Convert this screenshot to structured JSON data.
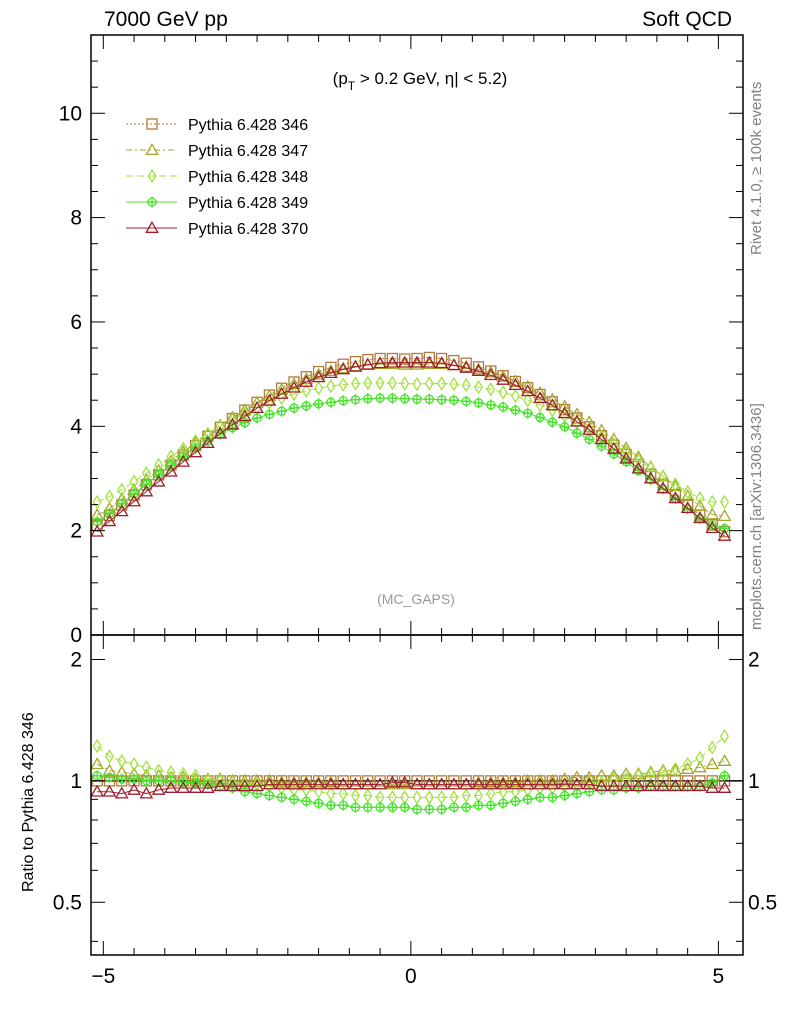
{
  "header": {
    "beam_label": "7000 GeV pp",
    "category": "Soft QCD"
  },
  "side_labels": {
    "rivet": "Rivet 4.1.0, ≥ 100k events",
    "mcplots": "mcplots.cern.ch [arXiv:1306.3436]"
  },
  "chart_data": {
    "type": "scatter",
    "cut_label": {
      "open": "(p",
      "sub": "T",
      "rest": " > 0.2 GeV, η| < 5.2)"
    },
    "watermark": "(MC_GAPS)",
    "x": [
      -5.1,
      -4.9,
      -4.7,
      -4.5,
      -4.3,
      -4.1,
      -3.9,
      -3.7,
      -3.5,
      -3.3,
      -3.1,
      -2.9,
      -2.7,
      -2.5,
      -2.3,
      -2.1,
      -1.9,
      -1.7,
      -1.5,
      -1.3,
      -1.1,
      -0.9,
      -0.7,
      -0.5,
      -0.3,
      -0.1,
      0.1,
      0.3,
      0.5,
      0.7,
      0.9,
      1.1,
      1.3,
      1.5,
      1.7,
      1.9,
      2.1,
      2.3,
      2.5,
      2.7,
      2.9,
      3.1,
      3.3,
      3.5,
      3.7,
      3.9,
      4.1,
      4.3,
      4.5,
      4.7,
      4.9,
      5.1
    ],
    "xlim": [
      -5.2,
      5.4
    ],
    "xticks": [
      -5,
      0,
      5
    ],
    "xtick_labels": [
      "−5",
      "0",
      "5"
    ],
    "main": {
      "ylim": [
        0,
        11.5
      ],
      "yticks": [
        0,
        2,
        4,
        6,
        8,
        10
      ],
      "ytick_labels": [
        "0",
        "2",
        "4",
        "6",
        "8",
        "10"
      ]
    },
    "ratio": {
      "ylabel": "Ratio to Pythia 6.428 346",
      "ylim": [
        0.37,
        2.3
      ],
      "yticks": [
        0.5,
        1,
        2
      ],
      "ytick_labels": [
        "0.5",
        "1",
        "2"
      ]
    },
    "legend_position": "top-left",
    "series": [
      {
        "name": "Pythia 6.428 346",
        "color": "#b07a3c",
        "marker": "square",
        "line": "dotted",
        "values": [
          2.1,
          2.29,
          2.49,
          2.68,
          2.88,
          3.07,
          3.26,
          3.45,
          3.63,
          3.81,
          3.98,
          4.15,
          4.31,
          4.46,
          4.6,
          4.73,
          4.85,
          4.95,
          5.05,
          5.13,
          5.19,
          5.24,
          5.28,
          5.3,
          5.3,
          5.29,
          5.3,
          5.32,
          5.3,
          5.26,
          5.21,
          5.14,
          5.06,
          4.97,
          4.86,
          4.74,
          4.61,
          4.47,
          4.32,
          4.16,
          3.99,
          3.82,
          3.64,
          3.46,
          3.27,
          3.08,
          2.89,
          2.69,
          2.5,
          2.3,
          2.11,
          1.98
        ],
        "ratio": [
          1,
          1,
          1,
          1,
          1,
          1,
          1,
          1,
          1,
          1,
          1,
          1,
          1,
          1,
          1,
          1,
          1,
          1,
          1,
          1,
          1,
          1,
          1,
          1,
          1,
          1,
          1,
          1,
          1,
          1,
          1,
          1,
          1,
          1,
          1,
          1,
          1,
          1,
          1,
          1,
          1,
          1,
          1,
          1,
          1,
          1,
          1,
          1,
          1,
          1,
          1,
          1
        ]
      },
      {
        "name": "Pythia 6.428 347",
        "color": "#a6a62a",
        "marker": "triangle",
        "line": "dashdot",
        "values": [
          2.3,
          2.42,
          2.6,
          2.78,
          2.97,
          3.15,
          3.33,
          3.51,
          3.68,
          3.85,
          4.02,
          4.17,
          4.31,
          4.45,
          4.58,
          4.7,
          4.81,
          4.9,
          4.99,
          5.06,
          5.11,
          5.15,
          5.18,
          5.19,
          5.19,
          5.18,
          5.18,
          5.19,
          5.19,
          5.17,
          5.14,
          5.09,
          5.03,
          4.95,
          4.86,
          4.76,
          4.64,
          4.51,
          4.38,
          4.23,
          4.08,
          3.92,
          3.75,
          3.58,
          3.41,
          3.22,
          3.04,
          2.85,
          2.66,
          2.47,
          2.31,
          2.28
        ],
        "ratio": [
          1.1,
          1.06,
          1.05,
          1.04,
          1.03,
          1.03,
          1.02,
          1.02,
          1.01,
          1.01,
          1.01,
          1,
          1,
          1,
          1,
          0.99,
          0.99,
          0.99,
          0.99,
          0.99,
          0.98,
          0.98,
          0.98,
          0.98,
          0.98,
          0.98,
          0.98,
          0.98,
          0.98,
          0.98,
          0.98,
          0.99,
          0.99,
          0.99,
          0.99,
          1,
          1,
          1,
          1.01,
          1.02,
          1.02,
          1.03,
          1.03,
          1.04,
          1.04,
          1.05,
          1.06,
          1.06,
          1.07,
          1.08,
          1.1,
          1.12
        ]
      },
      {
        "name": "Pythia 6.428 348",
        "color": "#a0e43a",
        "marker": "diamond",
        "line": "dashed",
        "values": [
          2.55,
          2.65,
          2.78,
          2.94,
          3.1,
          3.26,
          3.42,
          3.57,
          3.72,
          3.86,
          4,
          4.12,
          4.24,
          4.35,
          4.45,
          4.54,
          4.62,
          4.68,
          4.73,
          4.77,
          4.8,
          4.82,
          4.83,
          4.83,
          4.83,
          4.82,
          4.81,
          4.82,
          4.82,
          4.81,
          4.79,
          4.75,
          4.71,
          4.65,
          4.58,
          4.5,
          4.41,
          4.31,
          4.2,
          4.07,
          3.94,
          3.8,
          3.66,
          3.51,
          3.35,
          3.2,
          3.04,
          2.89,
          2.74,
          2.62,
          2.55,
          2.55
        ],
        "ratio": [
          1.22,
          1.15,
          1.12,
          1.1,
          1.08,
          1.06,
          1.05,
          1.04,
          1.03,
          1.01,
          1,
          0.99,
          0.98,
          0.98,
          0.97,
          0.96,
          0.95,
          0.95,
          0.94,
          0.93,
          0.93,
          0.92,
          0.92,
          0.91,
          0.91,
          0.91,
          0.91,
          0.91,
          0.91,
          0.91,
          0.92,
          0.92,
          0.93,
          0.94,
          0.94,
          0.95,
          0.96,
          0.96,
          0.97,
          0.98,
          0.99,
          0.99,
          1.01,
          1.01,
          1.03,
          1.04,
          1.05,
          1.07,
          1.1,
          1.14,
          1.21,
          1.29
        ]
      },
      {
        "name": "Pythia 6.428 349",
        "color": "#44e428",
        "marker": "crossed-circle",
        "line": "solid",
        "values": [
          2.17,
          2.33,
          2.52,
          2.71,
          2.89,
          3.08,
          3.25,
          3.42,
          3.58,
          3.72,
          3.85,
          3.97,
          4.07,
          4.16,
          4.23,
          4.29,
          4.35,
          4.39,
          4.43,
          4.46,
          4.49,
          4.51,
          4.53,
          4.54,
          4.54,
          4.53,
          4.52,
          4.52,
          4.51,
          4.5,
          4.48,
          4.45,
          4.41,
          4.37,
          4.31,
          4.25,
          4.17,
          4.08,
          3.99,
          3.87,
          3.75,
          3.62,
          3.47,
          3.32,
          3.15,
          2.98,
          2.8,
          2.62,
          2.42,
          2.23,
          2.1,
          2.04
        ],
        "ratio": [
          1.03,
          1.02,
          1.01,
          1.01,
          1,
          1,
          1,
          0.99,
          0.99,
          0.98,
          0.97,
          0.96,
          0.94,
          0.93,
          0.92,
          0.91,
          0.9,
          0.89,
          0.88,
          0.87,
          0.87,
          0.86,
          0.86,
          0.86,
          0.86,
          0.86,
          0.85,
          0.85,
          0.85,
          0.86,
          0.86,
          0.87,
          0.87,
          0.88,
          0.89,
          0.9,
          0.91,
          0.91,
          0.92,
          0.93,
          0.94,
          0.95,
          0.95,
          0.96,
          0.96,
          0.97,
          0.97,
          0.97,
          0.97,
          0.97,
          0.99,
          1.03
        ]
      },
      {
        "name": "Pythia 6.428 370",
        "color": "#a01c2c",
        "marker": "triangle",
        "line": "solid",
        "values": [
          1.98,
          2.18,
          2.37,
          2.56,
          2.75,
          2.94,
          3.13,
          3.32,
          3.5,
          3.68,
          3.86,
          4.03,
          4.19,
          4.35,
          4.49,
          4.62,
          4.74,
          4.85,
          4.94,
          5.02,
          5.09,
          5.14,
          5.18,
          5.21,
          5.22,
          5.22,
          5.22,
          5.22,
          5.21,
          5.17,
          5.12,
          5.06,
          4.98,
          4.89,
          4.79,
          4.67,
          4.54,
          4.4,
          4.25,
          4.09,
          3.93,
          3.75,
          3.57,
          3.38,
          3.19,
          3,
          2.81,
          2.62,
          2.43,
          2.24,
          2.05,
          1.9
        ],
        "ratio": [
          0.94,
          0.94,
          0.93,
          0.95,
          0.93,
          0.95,
          0.96,
          0.96,
          0.96,
          0.96,
          0.97,
          0.97,
          0.97,
          0.97,
          0.98,
          0.98,
          0.98,
          0.98,
          0.98,
          0.98,
          0.98,
          0.98,
          0.98,
          0.98,
          0.99,
          0.99,
          0.98,
          0.98,
          0.98,
          0.98,
          0.98,
          0.98,
          0.98,
          0.98,
          0.98,
          0.98,
          0.98,
          0.98,
          0.98,
          0.98,
          0.98,
          0.97,
          0.97,
          0.97,
          0.97,
          0.97,
          0.97,
          0.97,
          0.97,
          0.97,
          0.96,
          0.96
        ]
      }
    ]
  }
}
